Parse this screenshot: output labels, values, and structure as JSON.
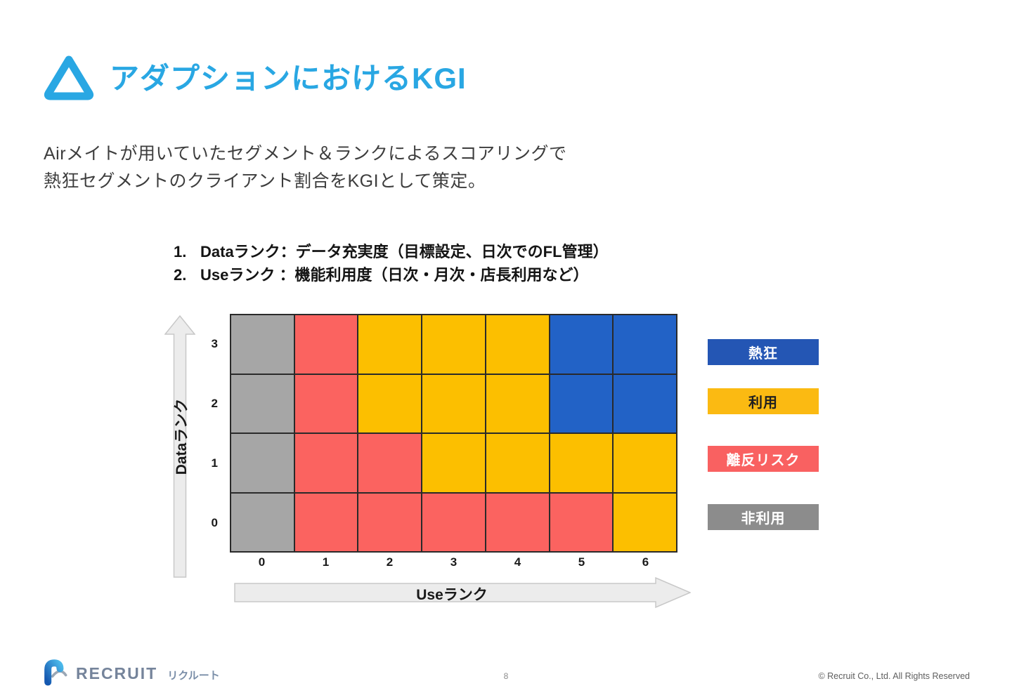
{
  "slide": {
    "title": "アダプションにおけるKGI",
    "intro_line1": "Airメイトが用いていたセグメント＆ランクによるスコアリングで",
    "intro_line2": "熱狂セグメントのクライアント割合をKGIとして策定。",
    "list": [
      {
        "num": "1.",
        "text": "Dataランク：データ充実度（目標設定、日次でのFL管理）"
      },
      {
        "num": "2.",
        "text": "Useランク ：機能利用度（日次・月次・店長利用など）"
      }
    ]
  },
  "chart_data": {
    "type": "heatmap",
    "title": "",
    "xlabel": "Useランク",
    "ylabel": "Dataランク",
    "x_ticks": [
      "0",
      "1",
      "2",
      "3",
      "4",
      "5",
      "6"
    ],
    "y_ticks": [
      "3",
      "2",
      "1",
      "0"
    ],
    "grid_on": true,
    "legend_position": "right",
    "segments": {
      "fanatic": {
        "label": "熱狂",
        "color": "#2262C6",
        "legend_color": "#2456B4",
        "text_color": "#ffffff"
      },
      "use": {
        "label": "利用",
        "color": "#FCBF00",
        "legend_color": "#FBBA12",
        "text_color": "#1f1f1f"
      },
      "churn_risk": {
        "label": "離反リスク",
        "color": "#FB6360",
        "legend_color": "#F96161",
        "text_color": "#ffffff"
      },
      "nonuse": {
        "label": "非利用",
        "color": "#A6A6A6",
        "legend_color": "#8C8C8C",
        "text_color": "#ffffff"
      }
    },
    "legend_order": [
      "fanatic",
      "use",
      "churn_risk",
      "nonuse"
    ],
    "matrix_rows_top_to_bottom": [
      {
        "data_rank": 3,
        "cells": [
          "nonuse",
          "churn_risk",
          "use",
          "use",
          "use",
          "fanatic",
          "fanatic"
        ]
      },
      {
        "data_rank": 2,
        "cells": [
          "nonuse",
          "churn_risk",
          "use",
          "use",
          "use",
          "fanatic",
          "fanatic"
        ]
      },
      {
        "data_rank": 1,
        "cells": [
          "nonuse",
          "churn_risk",
          "churn_risk",
          "use",
          "use",
          "use",
          "use"
        ]
      },
      {
        "data_rank": 0,
        "cells": [
          "nonuse",
          "churn_risk",
          "churn_risk",
          "churn_risk",
          "churn_risk",
          "churn_risk",
          "use"
        ]
      }
    ]
  },
  "footer": {
    "logo_text": "RECRUIT",
    "logo_kana": "リクルート",
    "page_number": "8",
    "copyright": "© Recruit Co., Ltd. All Rights Reserved"
  },
  "colors": {
    "title_accent": "#29A7E3",
    "arrow_fill": "#ECECEC",
    "arrow_stroke": "#C8C8C8",
    "grid_border": "#2a2a2a"
  }
}
